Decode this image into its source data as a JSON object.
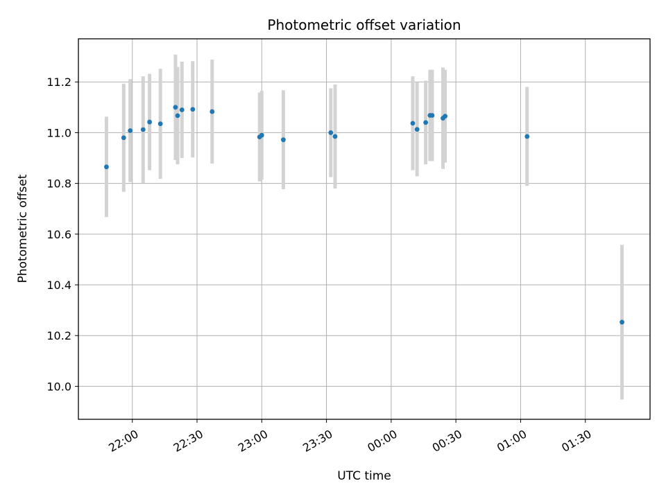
{
  "chart_data": {
    "type": "scatter",
    "title": "Photometric offset variation",
    "xlabel": "UTC time",
    "ylabel": "Photometric offset",
    "x_ticks": [
      "22:00",
      "22:30",
      "23:00",
      "23:30",
      "00:00",
      "00:30",
      "01:00",
      "01:30"
    ],
    "y_ticks": [
      "10.0",
      "10.2",
      "10.4",
      "10.6",
      "10.8",
      "11.0",
      "11.2"
    ],
    "xlim": [
      "21:35",
      "02:00"
    ],
    "ylim": [
      9.87,
      11.37
    ],
    "grid": true,
    "colors": {
      "points": "#1f77b4",
      "errorbars": "#d3d3d3",
      "grid": "#b0b0b0"
    },
    "points": [
      {
        "x": "21:48",
        "y": 10.865,
        "err": 0.198
      },
      {
        "x": "21:56",
        "y": 10.98,
        "err": 0.213
      },
      {
        "x": "21:59",
        "y": 11.008,
        "err": 0.203
      },
      {
        "x": "22:05",
        "y": 11.012,
        "err": 0.21
      },
      {
        "x": "22:08",
        "y": 11.042,
        "err": 0.19
      },
      {
        "x": "22:13",
        "y": 11.035,
        "err": 0.217
      },
      {
        "x": "22:20",
        "y": 11.1,
        "err": 0.208
      },
      {
        "x": "22:21",
        "y": 11.067,
        "err": 0.192
      },
      {
        "x": "22:23",
        "y": 11.09,
        "err": 0.19
      },
      {
        "x": "22:28",
        "y": 11.092,
        "err": 0.19
      },
      {
        "x": "22:37",
        "y": 11.083,
        "err": 0.205
      },
      {
        "x": "22:59",
        "y": 10.983,
        "err": 0.175
      },
      {
        "x": "23:00",
        "y": 10.99,
        "err": 0.175
      },
      {
        "x": "23:10",
        "y": 10.972,
        "err": 0.195
      },
      {
        "x": "23:32",
        "y": 11.0,
        "err": 0.175
      },
      {
        "x": "23:34",
        "y": 10.985,
        "err": 0.205
      },
      {
        "x": "00:10",
        "y": 11.037,
        "err": 0.185
      },
      {
        "x": "00:12",
        "y": 11.013,
        "err": 0.185
      },
      {
        "x": "00:16",
        "y": 11.04,
        "err": 0.165
      },
      {
        "x": "00:18",
        "y": 11.068,
        "err": 0.18
      },
      {
        "x": "00:19",
        "y": 11.068,
        "err": 0.18
      },
      {
        "x": "00:24",
        "y": 11.057,
        "err": 0.2
      },
      {
        "x": "00:25",
        "y": 11.065,
        "err": 0.183
      },
      {
        "x": "01:03",
        "y": 10.985,
        "err": 0.195
      },
      {
        "x": "01:47",
        "y": 10.253,
        "err": 0.305
      }
    ]
  }
}
